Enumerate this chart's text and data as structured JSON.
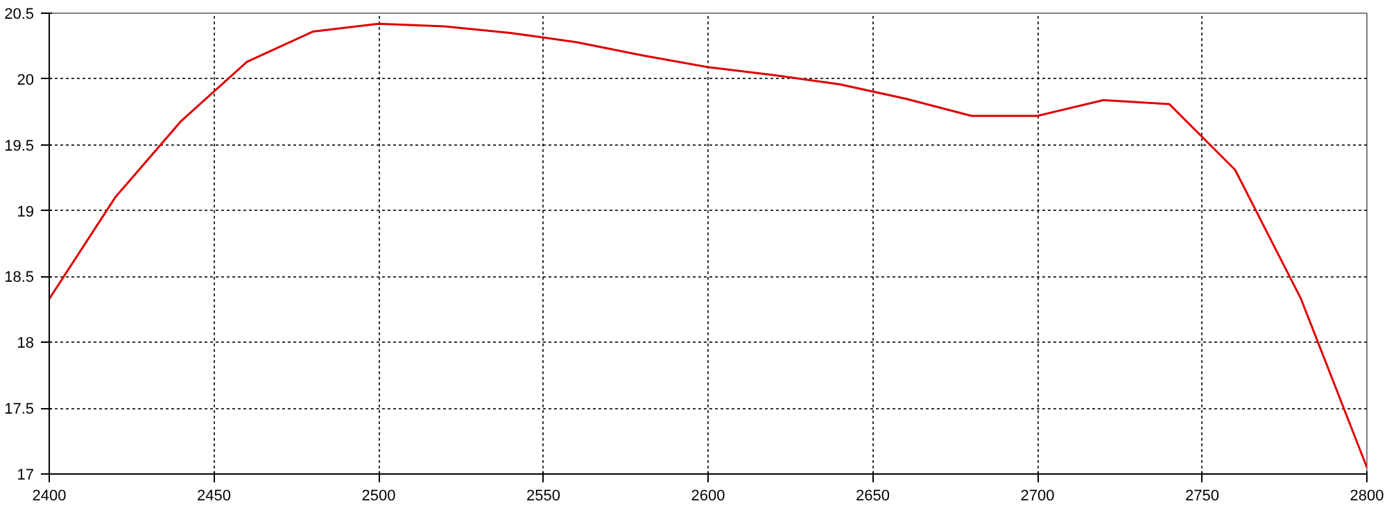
{
  "chart_data": {
    "type": "line",
    "x": [
      2400,
      2420,
      2440,
      2460,
      2480,
      2500,
      2520,
      2540,
      2560,
      2580,
      2600,
      2620,
      2640,
      2660,
      2680,
      2700,
      2720,
      2740,
      2760,
      2780,
      2800
    ],
    "series": [
      {
        "color": "#e00000",
        "values": [
          18.33,
          19.1,
          19.68,
          20.13,
          20.36,
          20.42,
          20.4,
          20.35,
          20.28,
          20.18,
          20.09,
          20.03,
          19.96,
          19.85,
          19.72,
          19.72,
          19.84,
          19.81,
          19.31,
          18.33,
          17.05
        ]
      }
    ],
    "xlim": [
      2400,
      2800
    ],
    "xticks": [
      2400,
      2450,
      2500,
      2550,
      2600,
      2650,
      2700,
      2750,
      2800
    ],
    "ylim": [
      17,
      20.5
    ],
    "yticks": [
      17,
      17.5,
      18,
      18.5,
      19,
      19.5,
      20,
      20.5
    ],
    "grid": true,
    "line_style": "solid",
    "marker": "none"
  }
}
